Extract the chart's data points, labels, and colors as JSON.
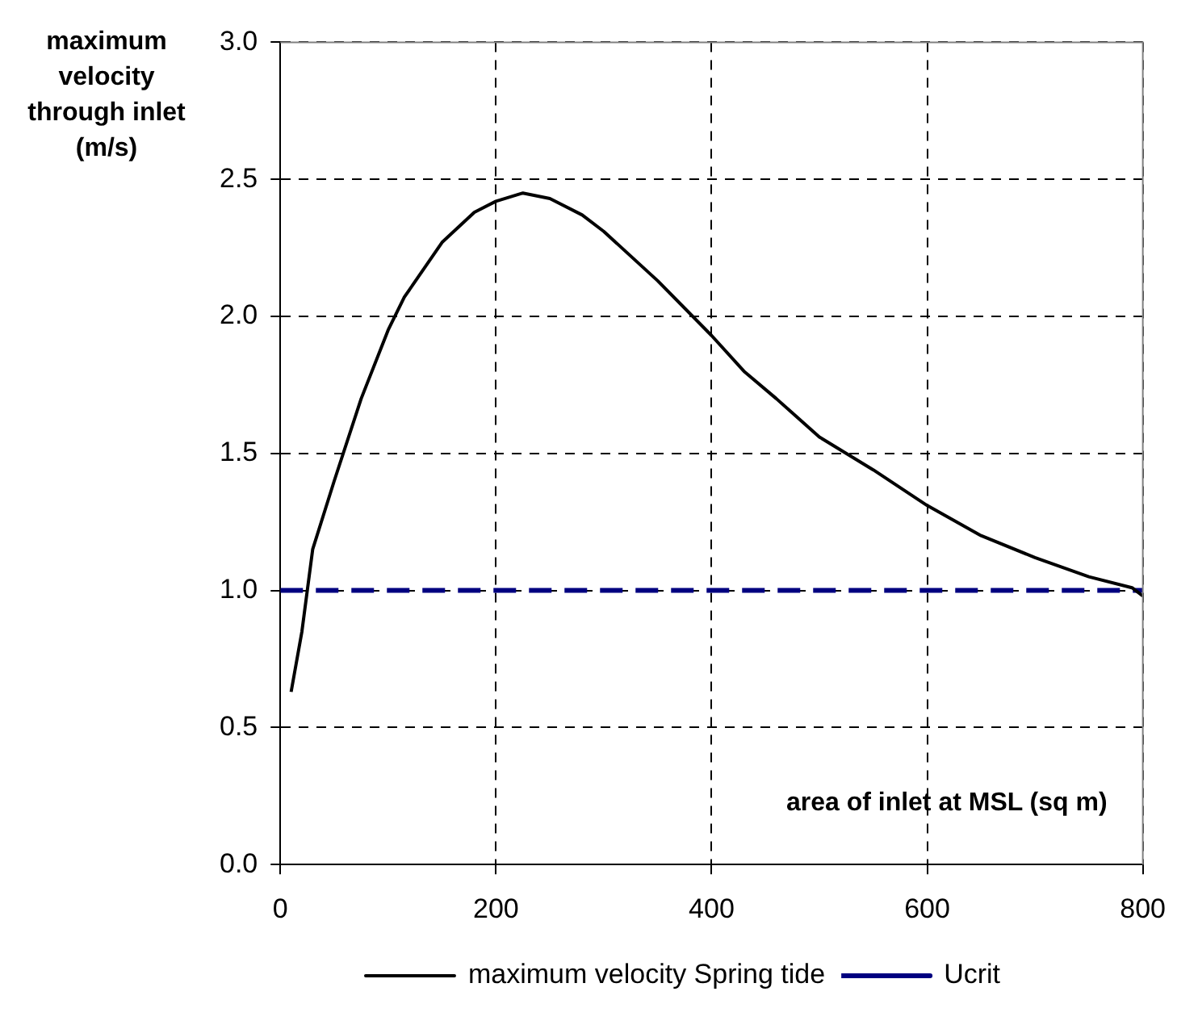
{
  "chart_data": {
    "type": "line",
    "xlabel": "area of inlet at MSL (sq m)",
    "ylabel": "maximum velocity through inlet (m/s)",
    "xlim": [
      0,
      800
    ],
    "xticks": [
      0,
      200,
      400,
      600,
      800
    ],
    "ylim": [
      0,
      3
    ],
    "yticks": [
      {
        "value": 0,
        "label": "0.0"
      },
      {
        "value": 0.5,
        "label": "0.5"
      },
      {
        "value": 1,
        "label": "1.0"
      },
      {
        "value": 1.5,
        "label": "1.5"
      },
      {
        "value": 2,
        "label": "2.0"
      },
      {
        "value": 2.5,
        "label": "2.5"
      },
      {
        "value": 3,
        "label": "3.0"
      }
    ],
    "grid": true,
    "legend": "bottom",
    "marker": "none",
    "series": [
      {
        "name": "maximum velocity Spring tide",
        "color": "#000000",
        "line_style": "solid",
        "x": [
          10,
          20,
          30,
          50,
          75,
          100,
          115,
          150,
          180,
          200,
          225,
          250,
          280,
          300,
          350,
          400,
          430,
          460,
          500,
          550,
          600,
          650,
          700,
          750,
          790,
          800
        ],
        "values": [
          0.63,
          0.85,
          1.15,
          1.4,
          1.7,
          1.95,
          2.07,
          2.27,
          2.38,
          2.42,
          2.45,
          2.43,
          2.37,
          2.31,
          2.13,
          1.93,
          1.8,
          1.7,
          1.56,
          1.44,
          1.31,
          1.2,
          1.12,
          1.05,
          1.01,
          0.98
        ]
      },
      {
        "name": "Ucrit",
        "color": "#000080",
        "line_style": "dashed",
        "x": [
          0,
          800
        ],
        "values": [
          1,
          1
        ]
      }
    ]
  }
}
